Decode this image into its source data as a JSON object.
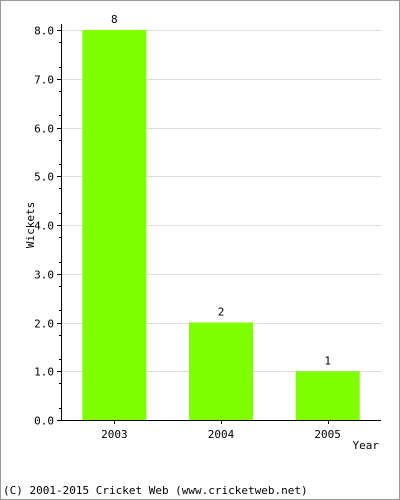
{
  "chart_data": {
    "type": "bar",
    "categories": [
      "2003",
      "2004",
      "2005"
    ],
    "values": [
      8,
      2,
      1
    ],
    "data_labels": [
      "8",
      "2",
      "1"
    ],
    "title": "",
    "xlabel": "Year",
    "ylabel": "Wickets",
    "ylim": [
      0,
      8
    ],
    "yticks": [
      "0.0",
      "1.0",
      "2.0",
      "3.0",
      "4.0",
      "5.0",
      "6.0",
      "7.0",
      "8.0"
    ],
    "grid": true,
    "bar_color": "#80ff00",
    "grid_color": "#dddddd"
  },
  "footer": {
    "text": "(C) 2001-2015 Cricket Web (www.cricketweb.net)"
  }
}
